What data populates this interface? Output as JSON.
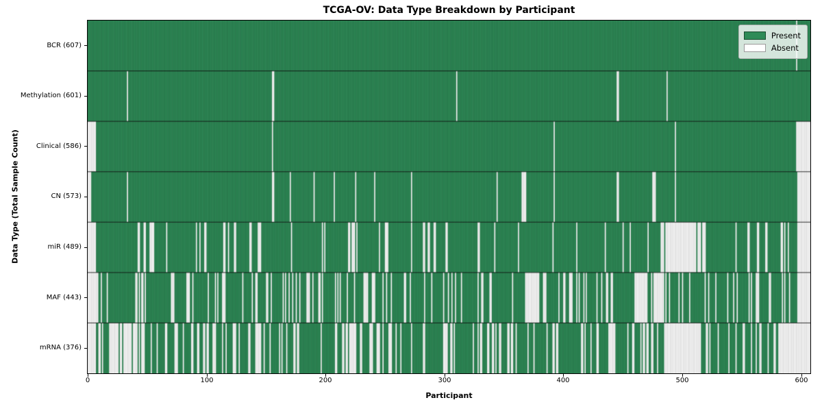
{
  "chart_data": {
    "type": "heatmap",
    "title": "TCGA-OV: Data Type Breakdown by Participant",
    "xlabel": "Participant",
    "ylabel": "Data Type (Total Sample Count)",
    "x_ticks": [
      "0",
      "100",
      "200",
      "300",
      "400",
      "500",
      "600"
    ],
    "x_tick_values": [
      0,
      100,
      200,
      300,
      400,
      500,
      600
    ],
    "total_participants": 608,
    "grid": false,
    "colors": {
      "present": "#2e8b57",
      "absent": "#ffffff",
      "bar_edge": "rgba(0,0,0,0.30)",
      "row_separator": "rgba(0,0,0,0.8)"
    },
    "legend": {
      "position": "upper right",
      "entries": [
        {
          "label": "Present",
          "color": "#2e8b57"
        },
        {
          "label": "Absent",
          "color": "#ffffff"
        }
      ]
    },
    "rows": [
      {
        "name": "BCR",
        "label": "BCR (607)",
        "present_count": 607,
        "scatter_seed": 11,
        "absent_runs": [
          [
            596,
            596
          ]
        ]
      },
      {
        "name": "Methylation",
        "label": "Methylation (601)",
        "present_count": 601,
        "scatter_seed": 23,
        "absent_runs": [
          [
            33,
            33
          ],
          [
            155,
            156
          ],
          [
            310,
            310
          ],
          [
            445,
            446
          ],
          [
            487,
            487
          ]
        ]
      },
      {
        "name": "Clinical",
        "label": "Clinical (586)",
        "present_count": 586,
        "scatter_seed": 37,
        "absent_runs": [
          [
            0,
            6
          ],
          [
            155,
            155
          ],
          [
            392,
            392
          ],
          [
            494,
            494
          ],
          [
            596,
            607
          ]
        ]
      },
      {
        "name": "CN",
        "label": "CN (573)",
        "present_count": 573,
        "scatter_seed": 41,
        "absent_runs": [
          [
            0,
            2
          ],
          [
            33,
            33
          ],
          [
            155,
            156
          ],
          [
            170,
            170
          ],
          [
            190,
            190
          ],
          [
            207,
            207
          ],
          [
            225,
            225
          ],
          [
            241,
            241
          ],
          [
            272,
            272
          ],
          [
            344,
            344
          ],
          [
            365,
            368
          ],
          [
            392,
            392
          ],
          [
            445,
            446
          ],
          [
            475,
            477
          ],
          [
            494,
            494
          ],
          [
            597,
            607
          ]
        ]
      },
      {
        "name": "miR",
        "label": "miR (489)",
        "present_count": 489,
        "scatter_seed": 53,
        "absent_runs": [
          [
            0,
            6
          ],
          [
            222,
            224
          ],
          [
            250,
            252
          ],
          [
            487,
            511
          ],
          [
            597,
            607
          ]
        ]
      },
      {
        "name": "MAF",
        "label": "MAF (443)",
        "present_count": 443,
        "scatter_seed": 67,
        "absent_runs": [
          [
            0,
            6
          ],
          [
            368,
            379
          ],
          [
            460,
            470
          ],
          [
            476,
            484
          ],
          [
            597,
            607
          ]
        ]
      },
      {
        "name": "mRNA",
        "label": "mRNA (376)",
        "present_count": 376,
        "scatter_seed": 79,
        "absent_runs": [
          [
            0,
            6
          ],
          [
            485,
            515
          ],
          [
            583,
            607
          ]
        ]
      }
    ]
  }
}
